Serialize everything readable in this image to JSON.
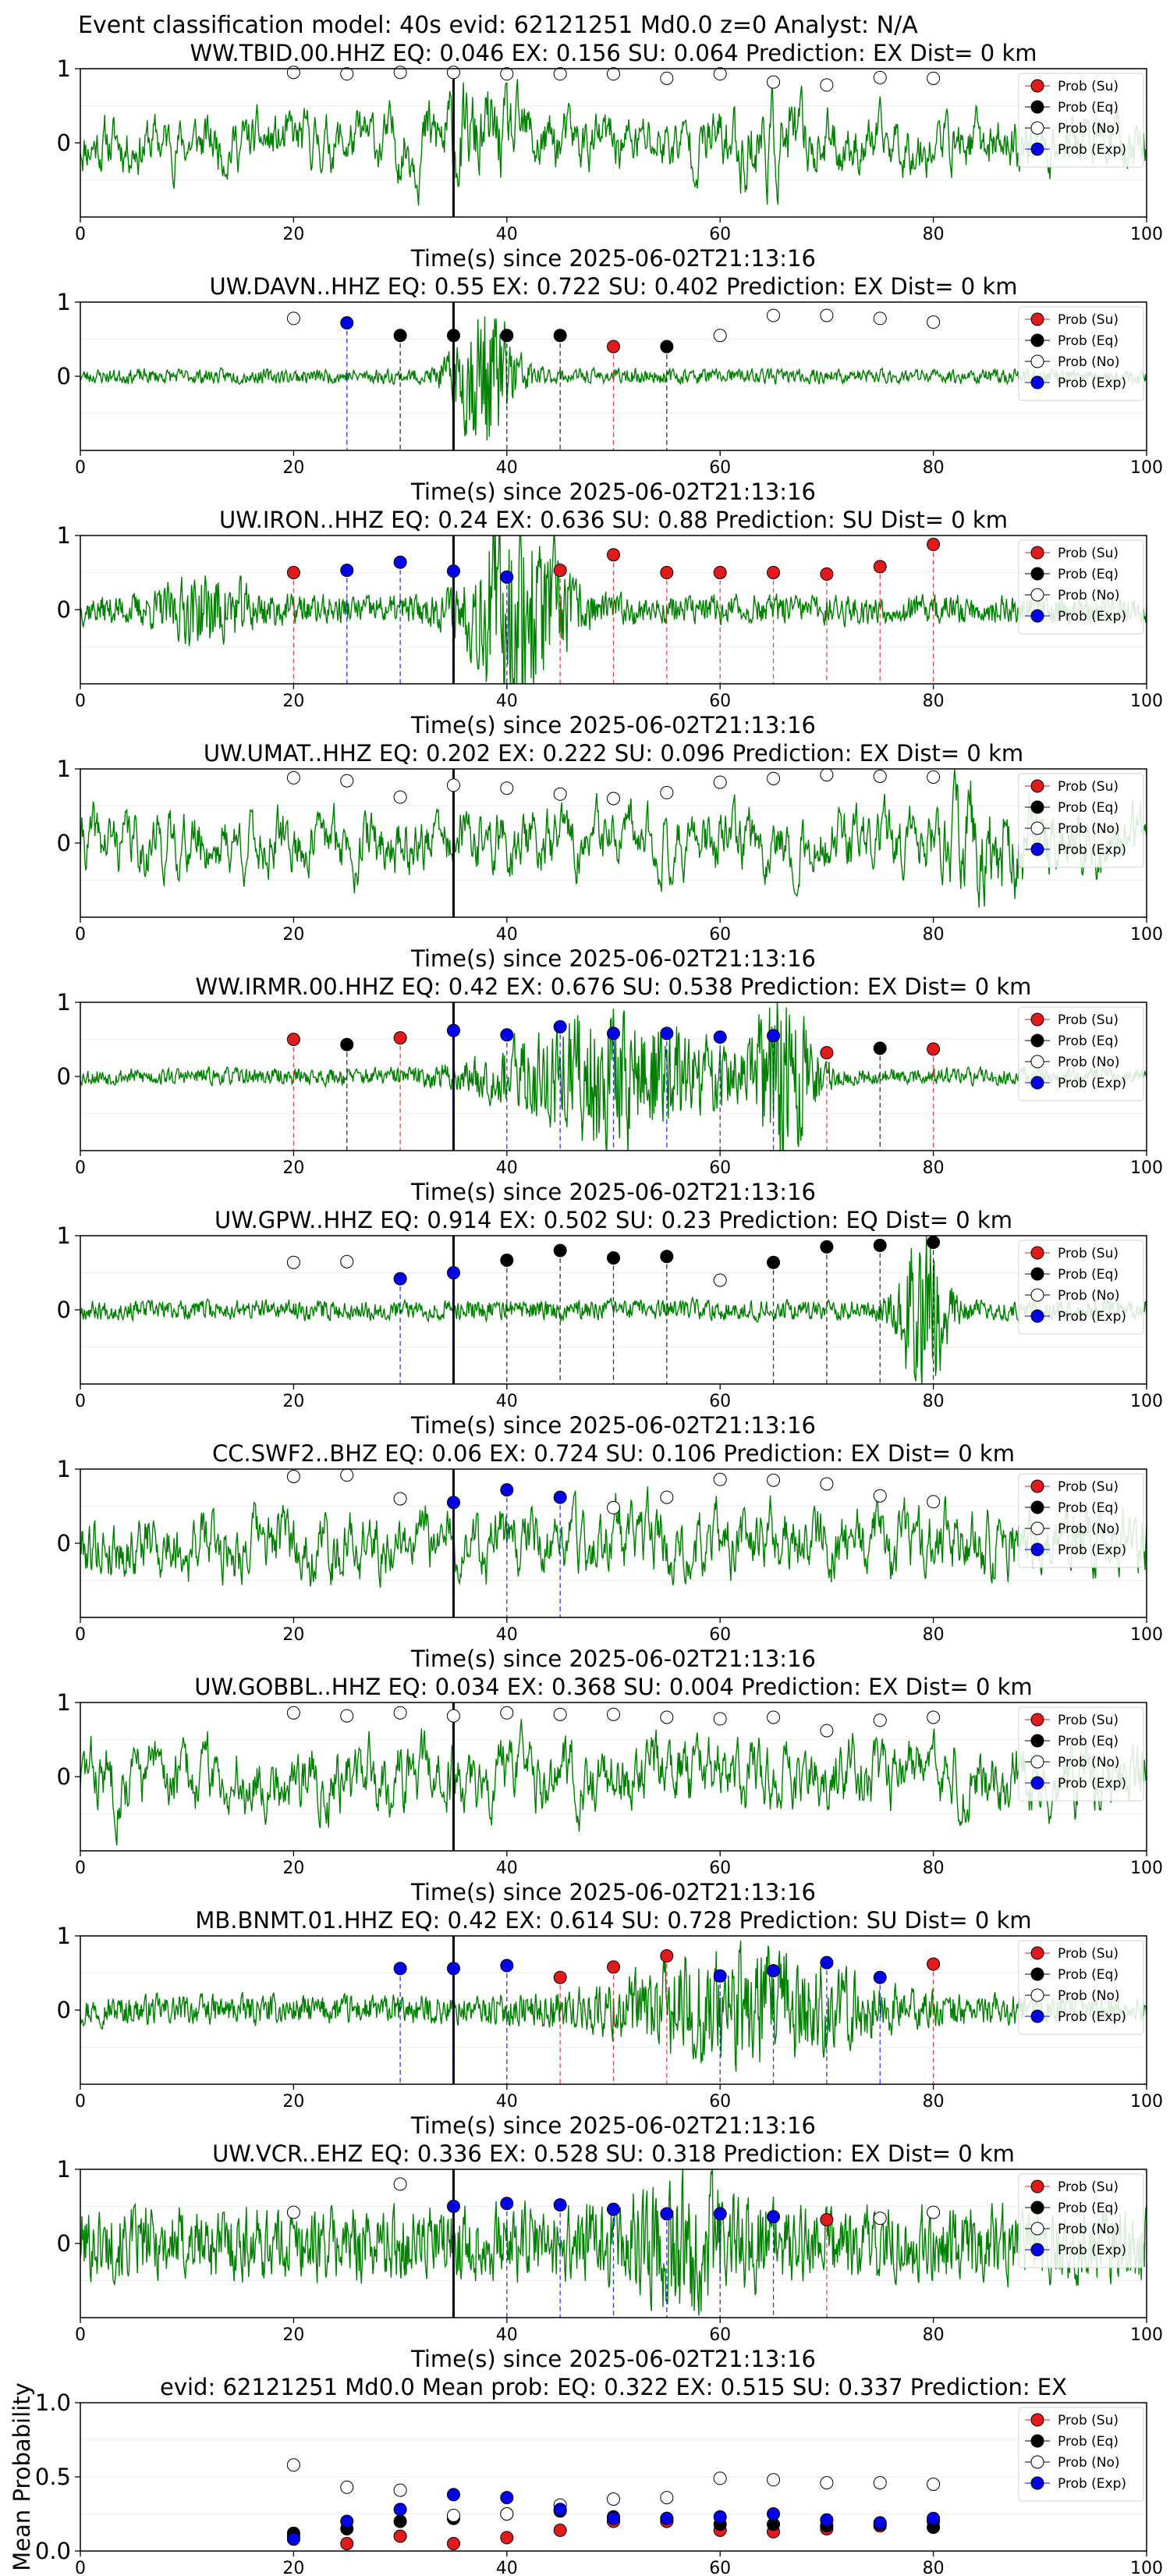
{
  "figure": {
    "title": "Event classification model: 40s evid: 62121251 Md0.0 z=0 Analyst: N/A"
  },
  "legend_labels": [
    "Prob (Su)",
    "Prob (Eq)",
    "Prob (No)",
    "Prob (Exp)"
  ],
  "colors": {
    "su": "#e31a1c",
    "eq": "#000000",
    "no": "#ffffff",
    "exp": "#0000ee",
    "trace": "#008000"
  },
  "chart_data": [
    {
      "type": "scatter",
      "title": "WW.TBID.00.HHZ   EQ: 0.046  EX: 0.156  SU: 0.064   Prediction: EX    Dist= 0 km",
      "xlabel": "Time(s) since 2025-06-02T21:13:16",
      "xlim": [
        0,
        100
      ],
      "ylim": [
        -1,
        1
      ],
      "x_ticks": [
        "0",
        "20",
        "40",
        "60",
        "80",
        "100"
      ],
      "y_ticks": [
        "1",
        "0"
      ],
      "pick_time": 35,
      "points": [
        [
          20,
          0.95,
          "no"
        ],
        [
          25,
          0.93,
          "no"
        ],
        [
          30,
          0.95,
          "no"
        ],
        [
          35,
          0.95,
          "no"
        ],
        [
          40,
          0.93,
          "no"
        ],
        [
          45,
          0.93,
          "no"
        ],
        [
          50,
          0.93,
          "no"
        ],
        [
          55,
          0.87,
          "no"
        ],
        [
          60,
          0.93,
          "no"
        ],
        [
          65,
          0.82,
          "no"
        ],
        [
          70,
          0.78,
          "no"
        ],
        [
          75,
          0.88,
          "no"
        ],
        [
          80,
          0.87,
          "no"
        ]
      ],
      "trace": {
        "amp": 0.45,
        "seed": 11,
        "events": [
          [
            37,
            0.35,
            8
          ],
          [
            64,
            0.3,
            6
          ]
        ]
      }
    },
    {
      "type": "scatter",
      "title": "UW.DAVN..HHZ   EQ: 0.55  EX: 0.722  SU: 0.402   Prediction: EX    Dist= 0 km",
      "xlabel": "Time(s) since 2025-06-02T21:13:16",
      "xlim": [
        0,
        100
      ],
      "ylim": [
        -1,
        1
      ],
      "x_ticks": [
        "0",
        "20",
        "40",
        "60",
        "80",
        "100"
      ],
      "y_ticks": [
        "1",
        "0"
      ],
      "pick_time": 35,
      "points": [
        [
          20,
          0.78,
          "no"
        ],
        [
          25,
          0.72,
          "exp"
        ],
        [
          30,
          0.55,
          "eq"
        ],
        [
          35,
          0.55,
          "eq"
        ],
        [
          40,
          0.55,
          "eq"
        ],
        [
          45,
          0.55,
          "eq"
        ],
        [
          50,
          0.4,
          "su"
        ],
        [
          55,
          0.4,
          "eq"
        ],
        [
          60,
          0.55,
          "no"
        ],
        [
          65,
          0.82,
          "no"
        ],
        [
          70,
          0.82,
          "no"
        ],
        [
          75,
          0.78,
          "no"
        ],
        [
          80,
          0.73,
          "no"
        ]
      ],
      "trace": {
        "amp": 0.06,
        "seed": 23,
        "events": [
          [
            38,
            0.6,
            4
          ]
        ]
      }
    },
    {
      "type": "scatter",
      "title": "UW.IRON..HHZ   EQ: 0.24  EX: 0.636  SU: 0.88   Prediction: SU    Dist= 0 km",
      "xlabel": "Time(s) since 2025-06-02T21:13:16",
      "xlim": [
        0,
        100
      ],
      "ylim": [
        -1,
        1
      ],
      "x_ticks": [
        "0",
        "20",
        "40",
        "60",
        "80",
        "100"
      ],
      "y_ticks": [
        "1",
        "0"
      ],
      "pick_time": 35,
      "points": [
        [
          20,
          0.5,
          "su"
        ],
        [
          25,
          0.53,
          "exp"
        ],
        [
          30,
          0.64,
          "exp"
        ],
        [
          35,
          0.52,
          "exp"
        ],
        [
          40,
          0.44,
          "exp"
        ],
        [
          45,
          0.53,
          "su"
        ],
        [
          50,
          0.74,
          "su"
        ],
        [
          55,
          0.5,
          "su"
        ],
        [
          60,
          0.5,
          "su"
        ],
        [
          65,
          0.5,
          "su"
        ],
        [
          70,
          0.48,
          "su"
        ],
        [
          75,
          0.58,
          "su"
        ],
        [
          80,
          0.88,
          "su"
        ]
      ],
      "trace": {
        "amp": 0.12,
        "seed": 37,
        "events": [
          [
            41,
            0.8,
            6
          ],
          [
            12,
            0.2,
            6
          ]
        ]
      }
    },
    {
      "type": "scatter",
      "title": "UW.UMAT..HHZ   EQ: 0.202  EX: 0.222  SU: 0.096   Prediction: EX    Dist= 0 km",
      "xlabel": "Time(s) since 2025-06-02T21:13:16",
      "xlim": [
        0,
        100
      ],
      "ylim": [
        -1,
        1
      ],
      "x_ticks": [
        "0",
        "20",
        "40",
        "60",
        "80",
        "100"
      ],
      "y_ticks": [
        "1",
        "0"
      ],
      "pick_time": 35,
      "points": [
        [
          20,
          0.88,
          "no"
        ],
        [
          25,
          0.84,
          "no"
        ],
        [
          30,
          0.62,
          "no"
        ],
        [
          35,
          0.78,
          "no"
        ],
        [
          40,
          0.74,
          "no"
        ],
        [
          45,
          0.66,
          "no"
        ],
        [
          50,
          0.6,
          "no"
        ],
        [
          55,
          0.68,
          "no"
        ],
        [
          60,
          0.82,
          "no"
        ],
        [
          65,
          0.87,
          "no"
        ],
        [
          70,
          0.92,
          "no"
        ],
        [
          75,
          0.9,
          "no"
        ],
        [
          80,
          0.89,
          "no"
        ]
      ],
      "trace": {
        "amp": 0.5,
        "seed": 41,
        "events": [
          [
            85,
            0.4,
            6
          ]
        ]
      }
    },
    {
      "type": "scatter",
      "title": "WW.IRMR.00.HHZ   EQ: 0.42  EX: 0.676  SU: 0.538   Prediction: EX    Dist= 0 km",
      "xlabel": "Time(s) since 2025-06-02T21:13:16",
      "xlim": [
        0,
        100
      ],
      "ylim": [
        -1,
        1
      ],
      "x_ticks": [
        "0",
        "20",
        "40",
        "60",
        "80",
        "100"
      ],
      "y_ticks": [
        "1",
        "0"
      ],
      "pick_time": 35,
      "points": [
        [
          20,
          0.5,
          "su"
        ],
        [
          25,
          0.43,
          "eq"
        ],
        [
          30,
          0.52,
          "su"
        ],
        [
          35,
          0.62,
          "exp"
        ],
        [
          40,
          0.56,
          "exp"
        ],
        [
          45,
          0.67,
          "exp"
        ],
        [
          50,
          0.58,
          "exp"
        ],
        [
          55,
          0.58,
          "exp"
        ],
        [
          60,
          0.53,
          "exp"
        ],
        [
          65,
          0.55,
          "exp"
        ],
        [
          70,
          0.32,
          "su"
        ],
        [
          75,
          0.38,
          "eq"
        ],
        [
          80,
          0.37,
          "su"
        ]
      ],
      "trace": {
        "amp": 0.07,
        "seed": 53,
        "events": [
          [
            50,
            0.55,
            14
          ],
          [
            66,
            0.7,
            4
          ]
        ]
      }
    },
    {
      "type": "scatter",
      "title": "UW.GPW..HHZ   EQ: 0.914  EX: 0.502  SU: 0.23   Prediction: EQ    Dist= 0 km",
      "xlabel": "Time(s) since 2025-06-02T21:13:16",
      "xlim": [
        0,
        100
      ],
      "ylim": [
        -1,
        1
      ],
      "x_ticks": [
        "0",
        "20",
        "40",
        "60",
        "80",
        "100"
      ],
      "y_ticks": [
        "1",
        "0"
      ],
      "pick_time": 35,
      "points": [
        [
          20,
          0.64,
          "no"
        ],
        [
          25,
          0.65,
          "no"
        ],
        [
          30,
          0.42,
          "exp"
        ],
        [
          35,
          0.5,
          "exp"
        ],
        [
          40,
          0.67,
          "eq"
        ],
        [
          45,
          0.8,
          "eq"
        ],
        [
          50,
          0.7,
          "eq"
        ],
        [
          55,
          0.72,
          "eq"
        ],
        [
          60,
          0.4,
          "no"
        ],
        [
          65,
          0.64,
          "eq"
        ],
        [
          70,
          0.85,
          "eq"
        ],
        [
          75,
          0.87,
          "eq"
        ],
        [
          80,
          0.91,
          "eq"
        ]
      ],
      "trace": {
        "amp": 0.08,
        "seed": 67,
        "events": [
          [
            79,
            0.7,
            3
          ]
        ]
      }
    },
    {
      "type": "scatter",
      "title": "CC.SWF2..BHZ   EQ: 0.06  EX: 0.724  SU: 0.106   Prediction: EX    Dist= 0 km",
      "xlabel": "Time(s) since 2025-06-02T21:13:16",
      "xlim": [
        0,
        100
      ],
      "ylim": [
        -1,
        1
      ],
      "x_ticks": [
        "0",
        "20",
        "40",
        "60",
        "80",
        "100"
      ],
      "y_ticks": [
        "1",
        "0"
      ],
      "pick_time": 35,
      "points": [
        [
          20,
          0.9,
          "no"
        ],
        [
          25,
          0.92,
          "no"
        ],
        [
          30,
          0.6,
          "no"
        ],
        [
          35,
          0.55,
          "exp"
        ],
        [
          40,
          0.72,
          "exp"
        ],
        [
          45,
          0.62,
          "exp"
        ],
        [
          50,
          0.48,
          "no"
        ],
        [
          55,
          0.62,
          "no"
        ],
        [
          60,
          0.86,
          "no"
        ],
        [
          65,
          0.85,
          "no"
        ],
        [
          70,
          0.8,
          "no"
        ],
        [
          75,
          0.64,
          "no"
        ],
        [
          80,
          0.56,
          "no"
        ]
      ],
      "trace": {
        "amp": 0.55,
        "seed": 79,
        "events": []
      }
    },
    {
      "type": "scatter",
      "title": "UW.GOBBL..HHZ   EQ: 0.034  EX: 0.368  SU: 0.004   Prediction: EX    Dist= 0 km",
      "xlabel": "Time(s) since 2025-06-02T21:13:16",
      "xlim": [
        0,
        100
      ],
      "ylim": [
        -1,
        1
      ],
      "x_ticks": [
        "0",
        "20",
        "40",
        "60",
        "80",
        "100"
      ],
      "y_ticks": [
        "1",
        "0"
      ],
      "pick_time": 35,
      "points": [
        [
          20,
          0.86,
          "no"
        ],
        [
          25,
          0.82,
          "no"
        ],
        [
          30,
          0.86,
          "no"
        ],
        [
          35,
          0.82,
          "no"
        ],
        [
          40,
          0.86,
          "no"
        ],
        [
          45,
          0.84,
          "no"
        ],
        [
          50,
          0.84,
          "no"
        ],
        [
          55,
          0.8,
          "no"
        ],
        [
          60,
          0.78,
          "no"
        ],
        [
          65,
          0.8,
          "no"
        ],
        [
          70,
          0.62,
          "no"
        ],
        [
          75,
          0.76,
          "no"
        ],
        [
          80,
          0.8,
          "no"
        ]
      ],
      "trace": {
        "amp": 0.55,
        "seed": 83,
        "events": []
      }
    },
    {
      "type": "scatter",
      "title": "MB.BNMT.01.HHZ   EQ: 0.42  EX: 0.614  SU: 0.728   Prediction: SU    Dist= 0 km",
      "xlabel": "Time(s) since 2025-06-02T21:13:16",
      "xlim": [
        0,
        100
      ],
      "ylim": [
        -1,
        1
      ],
      "x_ticks": [
        "0",
        "20",
        "40",
        "60",
        "80",
        "100"
      ],
      "y_ticks": [
        "1",
        "0"
      ],
      "pick_time": 35,
      "points": [
        [
          30,
          0.56,
          "exp"
        ],
        [
          35,
          0.56,
          "exp"
        ],
        [
          40,
          0.6,
          "exp"
        ],
        [
          45,
          0.44,
          "su"
        ],
        [
          50,
          0.58,
          "su"
        ],
        [
          55,
          0.73,
          "su"
        ],
        [
          60,
          0.46,
          "exp"
        ],
        [
          65,
          0.53,
          "exp"
        ],
        [
          70,
          0.64,
          "exp"
        ],
        [
          75,
          0.44,
          "exp"
        ],
        [
          80,
          0.62,
          "su"
        ]
      ],
      "trace": {
        "amp": 0.12,
        "seed": 97,
        "events": [
          [
            62,
            0.4,
            16
          ]
        ]
      }
    },
    {
      "type": "scatter",
      "title": "UW.VCR..EHZ   EQ: 0.336  EX: 0.528  SU: 0.318   Prediction: EX    Dist= 0 km",
      "xlabel": "Time(s) since 2025-06-02T21:13:16",
      "xlim": [
        0,
        100
      ],
      "ylim": [
        -1,
        1
      ],
      "x_ticks": [
        "0",
        "20",
        "40",
        "60",
        "80",
        "100"
      ],
      "y_ticks": [
        "1",
        "0"
      ],
      "pick_time": 35,
      "points": [
        [
          20,
          0.42,
          "no"
        ],
        [
          30,
          0.8,
          "no"
        ],
        [
          35,
          0.5,
          "exp"
        ],
        [
          40,
          0.54,
          "exp"
        ],
        [
          45,
          0.52,
          "exp"
        ],
        [
          50,
          0.46,
          "exp"
        ],
        [
          55,
          0.4,
          "exp"
        ],
        [
          60,
          0.4,
          "exp"
        ],
        [
          65,
          0.36,
          "exp"
        ],
        [
          70,
          0.32,
          "su"
        ],
        [
          75,
          0.34,
          "no"
        ],
        [
          80,
          0.42,
          "no"
        ]
      ],
      "trace": {
        "amp": 0.3,
        "seed": 101,
        "events": [
          [
            57,
            0.3,
            8
          ]
        ]
      }
    },
    {
      "type": "scatter",
      "title": "evid: 62121251  Md0.0   Mean prob:   EQ: 0.322  EX: 0.515  SU: 0.337   Prediction: EX",
      "xlabel": "",
      "ylabel": "Mean Probability",
      "xlim": [
        0,
        100
      ],
      "ylim": [
        0,
        1
      ],
      "x_ticks": [
        "0",
        "20",
        "40",
        "60",
        "80",
        "100"
      ],
      "y_ticks": [
        "1.0",
        "0.5",
        "0.0"
      ],
      "series": [
        {
          "name": "Prob (Su)",
          "key": "su",
          "x": [
            20,
            25,
            30,
            35,
            40,
            45,
            50,
            55,
            60,
            65,
            70,
            75,
            80
          ],
          "y": [
            0.1,
            0.05,
            0.1,
            0.05,
            0.09,
            0.14,
            0.2,
            0.2,
            0.14,
            0.13,
            0.15,
            0.17,
            0.2
          ]
        },
        {
          "name": "Prob (Eq)",
          "key": "eq",
          "x": [
            20,
            25,
            30,
            35,
            40,
            45,
            50,
            55,
            60,
            65,
            70,
            75,
            80
          ],
          "y": [
            0.12,
            0.15,
            0.2,
            0.22,
            0.25,
            0.27,
            0.23,
            0.22,
            0.18,
            0.18,
            0.17,
            0.18,
            0.16
          ]
        },
        {
          "name": "Prob (No)",
          "key": "no",
          "x": [
            20,
            25,
            30,
            35,
            40,
            45,
            50,
            55,
            60,
            65,
            70,
            75,
            80
          ],
          "y": [
            0.58,
            0.43,
            0.41,
            0.24,
            0.25,
            0.31,
            0.35,
            0.36,
            0.49,
            0.48,
            0.46,
            0.46,
            0.45
          ]
        },
        {
          "name": "Prob (Exp)",
          "key": "exp",
          "x": [
            20,
            25,
            30,
            35,
            40,
            45,
            50,
            55,
            60,
            65,
            70,
            75,
            80
          ],
          "y": [
            0.08,
            0.2,
            0.28,
            0.38,
            0.36,
            0.28,
            0.22,
            0.22,
            0.23,
            0.25,
            0.21,
            0.19,
            0.22
          ]
        }
      ]
    }
  ]
}
